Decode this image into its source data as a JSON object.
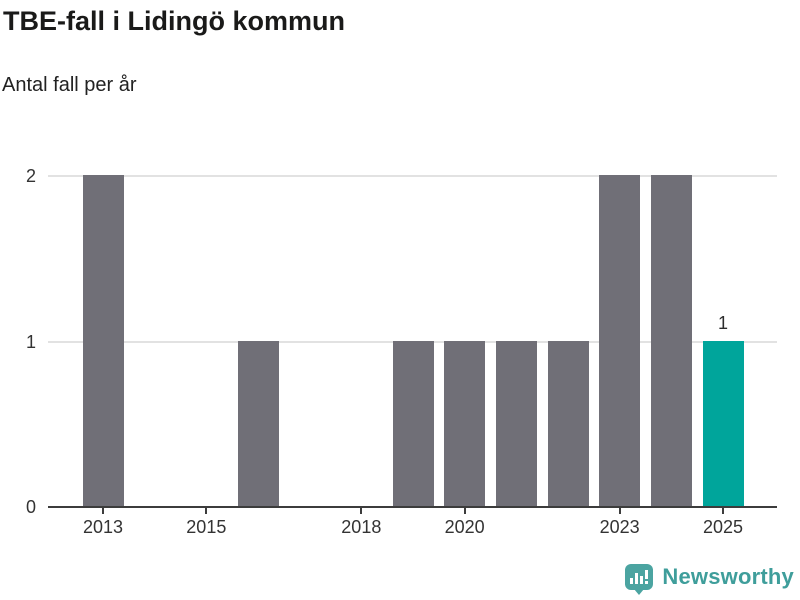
{
  "header": {
    "title": "TBE-fall i Lidingö kommun",
    "subtitle": "Antal fall per år"
  },
  "chart_data": {
    "type": "bar",
    "title": "TBE-fall i Lidingö kommun",
    "subtitle": "Antal fall per år",
    "xlabel": "",
    "ylabel": "Antal fall per år",
    "categories": [
      2013,
      2014,
      2015,
      2016,
      2017,
      2018,
      2019,
      2020,
      2021,
      2022,
      2023,
      2024,
      2025
    ],
    "values": [
      2,
      0,
      0,
      1,
      0,
      0,
      1,
      1,
      1,
      1,
      2,
      2,
      1
    ],
    "ylim": [
      0,
      2
    ],
    "yticks": [
      0,
      1,
      2
    ],
    "xticks_labeled": [
      2013,
      2015,
      2018,
      2020,
      2023,
      2025
    ],
    "grid": "horizontal-on",
    "legend": "none",
    "highlight": {
      "year": 2025,
      "value": 1,
      "data_label": "1"
    },
    "colors": {
      "bar": "#706f77",
      "highlight_bar": "#00a59b",
      "gridline": "#e2e2e2",
      "axis_line": "#3c3c3c",
      "tick_text": "#333333"
    }
  },
  "footer": {
    "brand": "Newsworthy",
    "brand_color": "#3f9e9b",
    "icon": "newsworthy-chart-bubble-icon",
    "icon_color": "#4ba4a1"
  }
}
